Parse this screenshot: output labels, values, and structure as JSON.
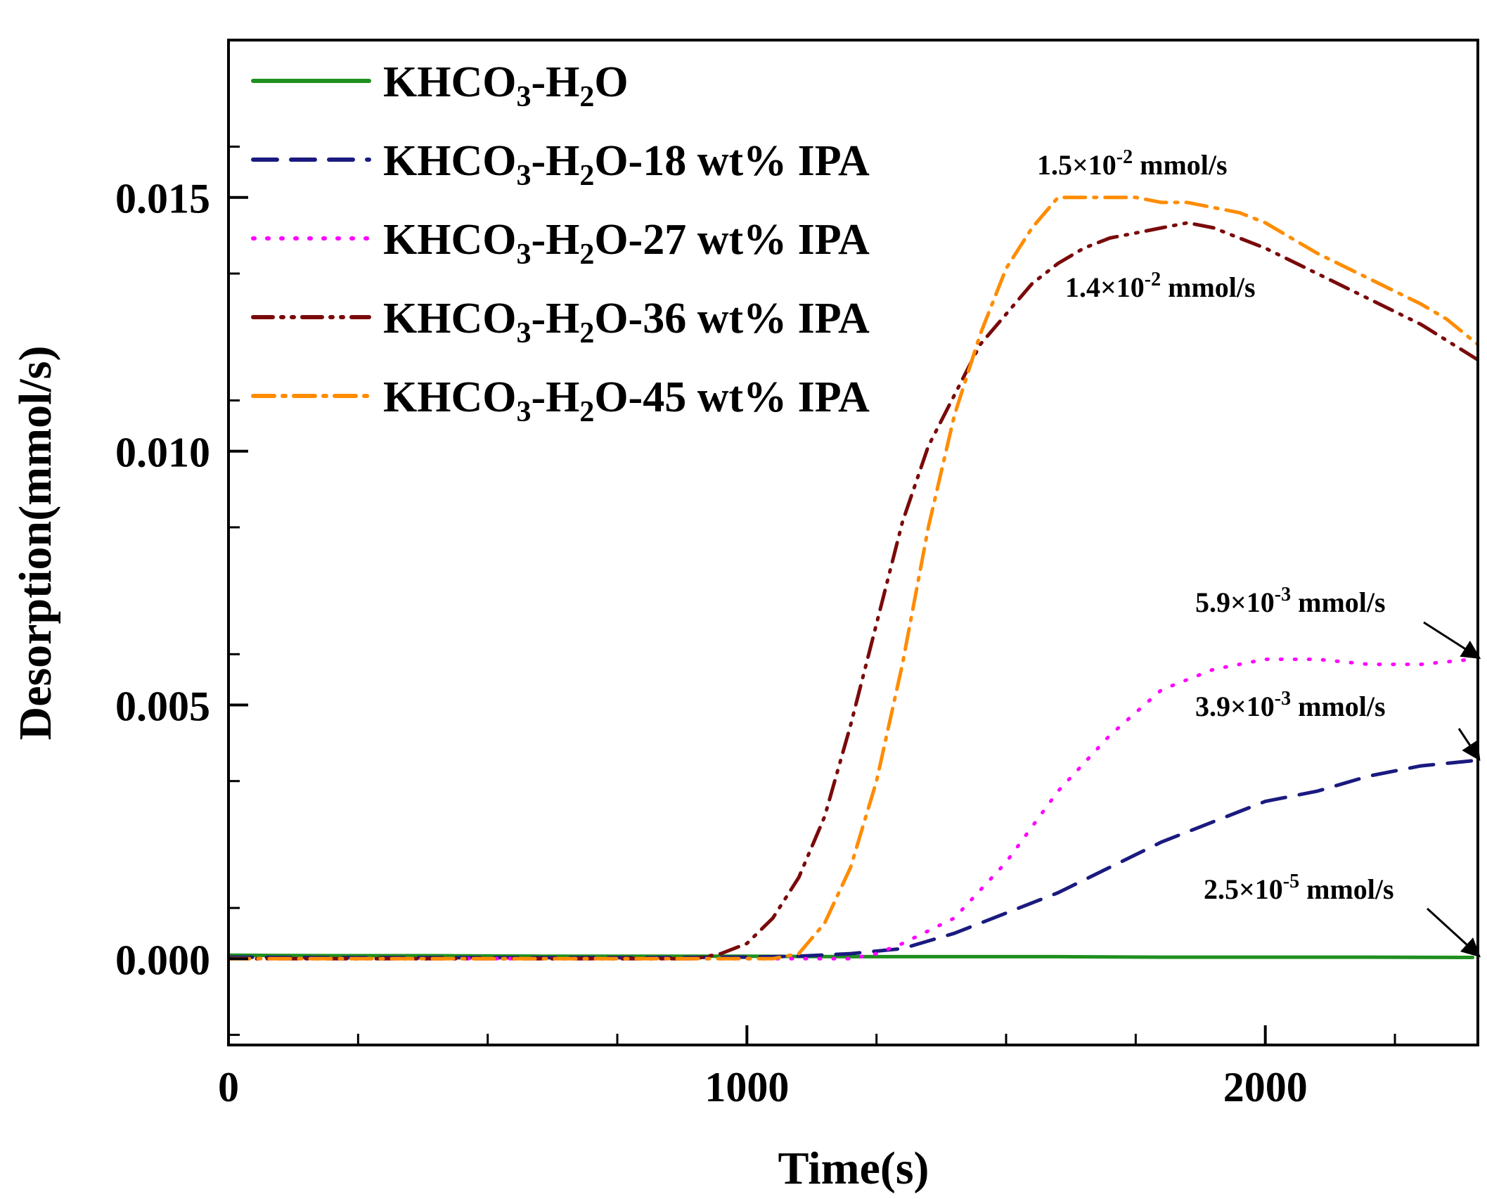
{
  "chart_data": {
    "type": "line",
    "xlabel": "Time(s)",
    "ylabel": "Desorption(mmol/s)",
    "xlim": [
      0,
      2410
    ],
    "ylim": [
      -0.0017,
      0.0181
    ],
    "x_major_ticks": [
      0,
      1000,
      2000
    ],
    "x_tick_labels": [
      "0",
      "1000",
      "2000"
    ],
    "y_major_ticks": [
      0.0,
      0.005,
      0.01,
      0.015
    ],
    "y_tick_labels": [
      "0.000",
      "0.005",
      "0.010",
      "0.015"
    ],
    "grid": false,
    "legend_position": "top-left",
    "series": [
      {
        "name": "KHCO3-H2O",
        "name_parts": [
          [
            "KHCO",
            "n"
          ],
          [
            "3",
            "sub"
          ],
          [
            "-H",
            "n"
          ],
          [
            "2",
            "sub"
          ],
          [
            "O",
            "n"
          ]
        ],
        "color": "#1f8f1f",
        "dash": "solid",
        "x": [
          0,
          200,
          400,
          600,
          800,
          1000,
          1200,
          1400,
          1600,
          1800,
          2000,
          2200,
          2400
        ],
        "y": [
          7e-05,
          6e-05,
          6e-05,
          5e-05,
          5e-05,
          5e-05,
          4e-05,
          4e-05,
          4e-05,
          3e-05,
          3e-05,
          3e-05,
          2.5e-05
        ]
      },
      {
        "name": "KHCO3-H2O-18 wt% IPA",
        "name_parts": [
          [
            "KHCO",
            "n"
          ],
          [
            "3",
            "sub"
          ],
          [
            "-H",
            "n"
          ],
          [
            "2",
            "sub"
          ],
          [
            "O-18 wt% IPA",
            "n"
          ]
        ],
        "color": "#1a1a80",
        "dash": "long-dash",
        "x": [
          0,
          200,
          400,
          600,
          800,
          1000,
          1100,
          1200,
          1300,
          1400,
          1500,
          1600,
          1700,
          1800,
          1900,
          2000,
          2100,
          2200,
          2300,
          2400
        ],
        "y": [
          3e-05,
          2e-05,
          2e-05,
          2e-05,
          2e-05,
          3e-05,
          5e-05,
          0.0001,
          0.0002,
          0.0005,
          0.0009,
          0.0013,
          0.0018,
          0.0023,
          0.0027,
          0.0031,
          0.0033,
          0.0036,
          0.0038,
          0.0039
        ]
      },
      {
        "name": "KHCO3-H2O-27 wt% IPA",
        "name_parts": [
          [
            "KHCO",
            "n"
          ],
          [
            "3",
            "sub"
          ],
          [
            "-H",
            "n"
          ],
          [
            "2",
            "sub"
          ],
          [
            "O-27 wt% IPA",
            "n"
          ]
        ],
        "color": "#ff00ff",
        "dash": "dot",
        "x": [
          0,
          200,
          400,
          600,
          800,
          1000,
          1100,
          1200,
          1250,
          1300,
          1400,
          1500,
          1600,
          1700,
          1800,
          1900,
          2000,
          2100,
          2200,
          2300,
          2400
        ],
        "y": [
          0.0,
          0.0,
          0.0,
          0.0,
          0.0,
          0.0,
          0.0,
          0.0,
          0.0001,
          0.0003,
          0.0008,
          0.0019,
          0.0033,
          0.0044,
          0.0053,
          0.0057,
          0.0059,
          0.0059,
          0.0058,
          0.0058,
          0.0059
        ]
      },
      {
        "name": "KHCO3-H2O-36 wt% IPA",
        "name_parts": [
          [
            "KHCO",
            "n"
          ],
          [
            "3",
            "sub"
          ],
          [
            "-H",
            "n"
          ],
          [
            "2",
            "sub"
          ],
          [
            "O-36 wt% IPA",
            "n"
          ]
        ],
        "color": "#7a0a0a",
        "dash": "dash-dot-dot",
        "x": [
          0,
          200,
          400,
          600,
          800,
          900,
          950,
          1000,
          1050,
          1100,
          1150,
          1200,
          1250,
          1300,
          1350,
          1400,
          1450,
          1500,
          1550,
          1600,
          1650,
          1700,
          1750,
          1800,
          1850,
          1900,
          1950,
          2000,
          2100,
          2200,
          2300,
          2410
        ],
        "y": [
          0.0,
          0.0,
          0.0,
          0.0,
          0.0,
          0.0,
          0.0001,
          0.0003,
          0.0008,
          0.0016,
          0.0028,
          0.0046,
          0.0066,
          0.0086,
          0.0101,
          0.0111,
          0.0121,
          0.0127,
          0.0133,
          0.0137,
          0.014,
          0.0142,
          0.0143,
          0.0144,
          0.0145,
          0.0144,
          0.0142,
          0.014,
          0.0135,
          0.013,
          0.0125,
          0.0118
        ]
      },
      {
        "name": "KHCO3-H2O-45 wt% IPA",
        "name_parts": [
          [
            "KHCO",
            "n"
          ],
          [
            "3",
            "sub"
          ],
          [
            "-H",
            "n"
          ],
          [
            "2",
            "sub"
          ],
          [
            "O-45 wt% IPA",
            "n"
          ]
        ],
        "color": "#ff8c00",
        "dash": "dash-dot",
        "x": [
          0,
          200,
          400,
          600,
          800,
          1000,
          1050,
          1100,
          1150,
          1200,
          1250,
          1300,
          1350,
          1400,
          1450,
          1500,
          1550,
          1600,
          1650,
          1700,
          1750,
          1800,
          1850,
          1900,
          1950,
          2000,
          2050,
          2100,
          2200,
          2300,
          2350,
          2410
        ],
        "y": [
          0.0,
          0.0,
          0.0,
          0.0,
          0.0,
          0.0,
          0.0,
          0.0001,
          0.0007,
          0.0018,
          0.0035,
          0.0058,
          0.0085,
          0.0107,
          0.0123,
          0.0136,
          0.0144,
          0.015,
          0.015,
          0.015,
          0.015,
          0.0149,
          0.0149,
          0.0148,
          0.0147,
          0.0145,
          0.0142,
          0.0139,
          0.0134,
          0.0129,
          0.0126,
          0.0121
        ]
      }
    ],
    "annotations": [
      {
        "id": "a15",
        "mantissa": "1.5×10",
        "exponent": "-2",
        "unit": " mmol/s",
        "target": [
          1720,
          0.015
        ],
        "arrow": false
      },
      {
        "id": "a14",
        "mantissa": "1.4×10",
        "exponent": "-2",
        "unit": " mmol/s",
        "target": [
          1900,
          0.0144
        ],
        "arrow": false
      },
      {
        "id": "a59",
        "mantissa": "5.9×10",
        "exponent": "-3",
        "unit": " mmol/s",
        "target": [
          2410,
          0.0059
        ],
        "arrow": true
      },
      {
        "id": "a39",
        "mantissa": "3.9×10",
        "exponent": "-3",
        "unit": " mmol/s",
        "target": [
          2410,
          0.0039
        ],
        "arrow": true
      },
      {
        "id": "a25",
        "mantissa": "2.5×10",
        "exponent": "-5",
        "unit": " mmol/s",
        "target": [
          2410,
          2.5e-05
        ],
        "arrow": true
      }
    ]
  }
}
